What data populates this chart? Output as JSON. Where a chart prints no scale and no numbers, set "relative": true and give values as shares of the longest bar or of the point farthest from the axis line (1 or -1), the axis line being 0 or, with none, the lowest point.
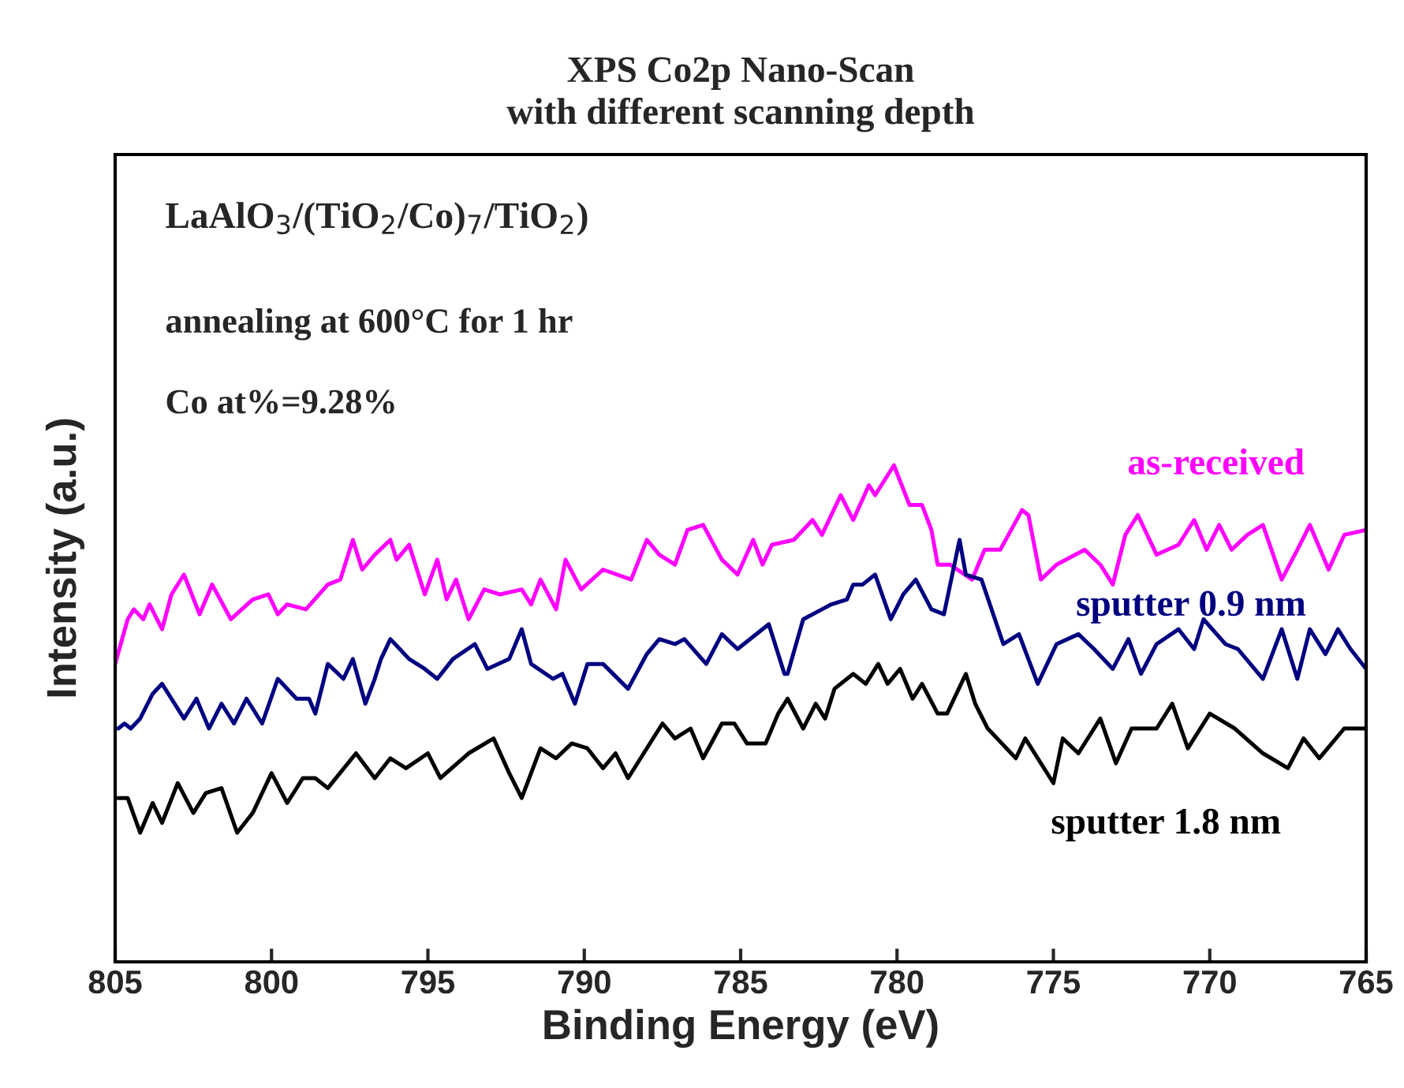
{
  "chart_data": {
    "type": "line",
    "title": "XPS Co2p Nano-Scan\nwith different scanning depth",
    "xlabel": "Binding Energy (eV)",
    "ylabel": "Intensity (a.u.)",
    "relative": true,
    "xlim": [
      805,
      765
    ],
    "xticks": [
      805,
      800,
      795,
      790,
      785,
      780,
      775,
      770,
      765
    ],
    "grid": false,
    "marker": "none",
    "line_style": "solid",
    "annotations": [
      "LaAlO$_{3}$/(TiO$_{2}$/Co)$_{7}$/TiO$_{2}$)",
      "annealing at 600°C for 1 hr",
      "Co at%=9.28%"
    ],
    "series": [
      {
        "name": "as-received",
        "color": "#ff00ff",
        "x": [
          805.0,
          804.6,
          804.4,
          804.1,
          803.9,
          803.5,
          803.2,
          802.8,
          802.3,
          801.9,
          801.3,
          800.6,
          800.1,
          799.8,
          799.5,
          798.9,
          798.2,
          797.8,
          797.4,
          797.1,
          796.7,
          796.2,
          796.0,
          795.6,
          795.1,
          794.7,
          794.4,
          794.1,
          793.7,
          793.2,
          792.7,
          792.0,
          791.7,
          791.4,
          790.9,
          790.6,
          790.1,
          789.4,
          788.5,
          788.0,
          787.6,
          787.1,
          786.7,
          786.2,
          785.6,
          785.1,
          784.6,
          784.3,
          784.0,
          783.3,
          782.7,
          782.4,
          781.8,
          781.4,
          780.9,
          780.7,
          780.1,
          779.6,
          779.2,
          778.9,
          778.7,
          778.3,
          777.6,
          777.2,
          776.7,
          776.0,
          775.8,
          775.4,
          774.9,
          774.0,
          773.5,
          773.1,
          772.7,
          772.3,
          771.7,
          771.0,
          770.5,
          770.1,
          769.7,
          769.3,
          768.8,
          768.3,
          767.7,
          767.2,
          766.8,
          766.2,
          765.7,
          765.0
        ],
        "values": [
          0.6,
          0.69,
          0.71,
          0.69,
          0.72,
          0.67,
          0.74,
          0.78,
          0.7,
          0.76,
          0.69,
          0.73,
          0.74,
          0.7,
          0.72,
          0.71,
          0.76,
          0.77,
          0.85,
          0.79,
          0.82,
          0.85,
          0.81,
          0.84,
          0.74,
          0.81,
          0.73,
          0.77,
          0.69,
          0.75,
          0.74,
          0.75,
          0.72,
          0.77,
          0.71,
          0.81,
          0.75,
          0.79,
          0.77,
          0.85,
          0.82,
          0.8,
          0.87,
          0.88,
          0.81,
          0.78,
          0.85,
          0.8,
          0.84,
          0.85,
          0.89,
          0.86,
          0.94,
          0.89,
          0.96,
          0.94,
          1.0,
          0.92,
          0.92,
          0.87,
          0.8,
          0.8,
          0.77,
          0.83,
          0.83,
          0.91,
          0.9,
          0.77,
          0.8,
          0.83,
          0.8,
          0.76,
          0.86,
          0.9,
          0.82,
          0.84,
          0.89,
          0.83,
          0.88,
          0.83,
          0.86,
          0.88,
          0.77,
          0.83,
          0.88,
          0.79,
          0.86,
          0.87
        ]
      },
      {
        "name": "sputter 0.9 nm",
        "color": "#000080",
        "x": [
          804.9,
          804.7,
          804.5,
          804.2,
          803.8,
          803.5,
          803.2,
          802.8,
          802.4,
          802.0,
          801.6,
          801.2,
          800.8,
          800.3,
          799.8,
          799.2,
          798.8,
          798.6,
          798.2,
          797.7,
          797.4,
          797.0,
          796.7,
          796.5,
          796.2,
          795.6,
          795.1,
          794.7,
          794.2,
          793.5,
          793.1,
          792.4,
          792.0,
          791.7,
          791.0,
          790.7,
          790.3,
          789.9,
          789.4,
          788.6,
          788.0,
          787.6,
          787.1,
          786.8,
          786.1,
          785.6,
          785.1,
          784.1,
          783.6,
          783.5,
          783.0,
          782.4,
          782.1,
          781.6,
          781.4,
          781.1,
          780.7,
          780.2,
          779.8,
          779.4,
          778.9,
          778.5,
          778.0,
          777.8,
          777.3,
          776.6,
          776.1,
          775.5,
          774.9,
          774.2,
          773.7,
          773.1,
          772.6,
          772.2,
          771.7,
          771.0,
          770.5,
          770.2,
          769.5,
          769.1,
          768.3,
          767.7,
          767.2,
          766.8,
          766.3,
          765.9,
          765.5,
          765.0
        ],
        "values": [
          0.47,
          0.48,
          0.47,
          0.49,
          0.54,
          0.56,
          0.53,
          0.49,
          0.53,
          0.47,
          0.52,
          0.48,
          0.53,
          0.48,
          0.57,
          0.53,
          0.53,
          0.5,
          0.6,
          0.57,
          0.61,
          0.52,
          0.57,
          0.61,
          0.65,
          0.61,
          0.59,
          0.57,
          0.61,
          0.64,
          0.59,
          0.61,
          0.67,
          0.6,
          0.57,
          0.58,
          0.52,
          0.6,
          0.6,
          0.55,
          0.62,
          0.65,
          0.64,
          0.65,
          0.6,
          0.66,
          0.63,
          0.68,
          0.58,
          0.58,
          0.69,
          0.71,
          0.72,
          0.73,
          0.76,
          0.76,
          0.78,
          0.69,
          0.74,
          0.77,
          0.71,
          0.7,
          0.85,
          0.78,
          0.77,
          0.64,
          0.66,
          0.56,
          0.64,
          0.66,
          0.63,
          0.59,
          0.65,
          0.58,
          0.64,
          0.67,
          0.63,
          0.69,
          0.64,
          0.63,
          0.57,
          0.67,
          0.57,
          0.67,
          0.62,
          0.67,
          0.63,
          0.59
        ]
      },
      {
        "name": "sputter 1.8 nm",
        "color": "#000000",
        "x": [
          804.9,
          804.6,
          804.2,
          803.8,
          803.5,
          803.0,
          802.5,
          802.1,
          801.6,
          801.1,
          800.6,
          800.0,
          799.5,
          799.0,
          798.6,
          798.2,
          797.3,
          796.7,
          796.2,
          795.7,
          795.0,
          794.6,
          793.7,
          792.9,
          792.4,
          792.0,
          791.7,
          791.4,
          790.9,
          790.4,
          789.9,
          789.4,
          789.0,
          788.6,
          788.1,
          787.5,
          787.1,
          786.6,
          786.2,
          785.6,
          785.2,
          784.8,
          784.2,
          783.8,
          783.5,
          783.0,
          782.6,
          782.3,
          782.0,
          781.4,
          781.0,
          780.6,
          780.3,
          779.9,
          779.5,
          779.2,
          778.7,
          778.4,
          777.8,
          777.5,
          777.1,
          776.2,
          775.9,
          775.0,
          774.7,
          774.2,
          773.5,
          773.0,
          772.5,
          771.7,
          771.2,
          770.7,
          770.0,
          769.2,
          768.3,
          767.5,
          767.0,
          766.5,
          765.7,
          765.0
        ],
        "values": [
          0.33,
          0.33,
          0.26,
          0.32,
          0.28,
          0.36,
          0.3,
          0.34,
          0.35,
          0.26,
          0.3,
          0.38,
          0.32,
          0.37,
          0.37,
          0.35,
          0.42,
          0.37,
          0.41,
          0.39,
          0.42,
          0.37,
          0.42,
          0.45,
          0.38,
          0.33,
          0.38,
          0.43,
          0.41,
          0.44,
          0.43,
          0.39,
          0.42,
          0.37,
          0.42,
          0.48,
          0.45,
          0.47,
          0.41,
          0.48,
          0.48,
          0.44,
          0.44,
          0.5,
          0.53,
          0.47,
          0.52,
          0.49,
          0.55,
          0.58,
          0.56,
          0.6,
          0.56,
          0.59,
          0.53,
          0.56,
          0.5,
          0.5,
          0.58,
          0.52,
          0.47,
          0.41,
          0.45,
          0.36,
          0.45,
          0.42,
          0.49,
          0.4,
          0.47,
          0.47,
          0.52,
          0.43,
          0.5,
          0.47,
          0.42,
          0.39,
          0.45,
          0.41,
          0.47,
          0.47
        ]
      }
    ]
  }
}
